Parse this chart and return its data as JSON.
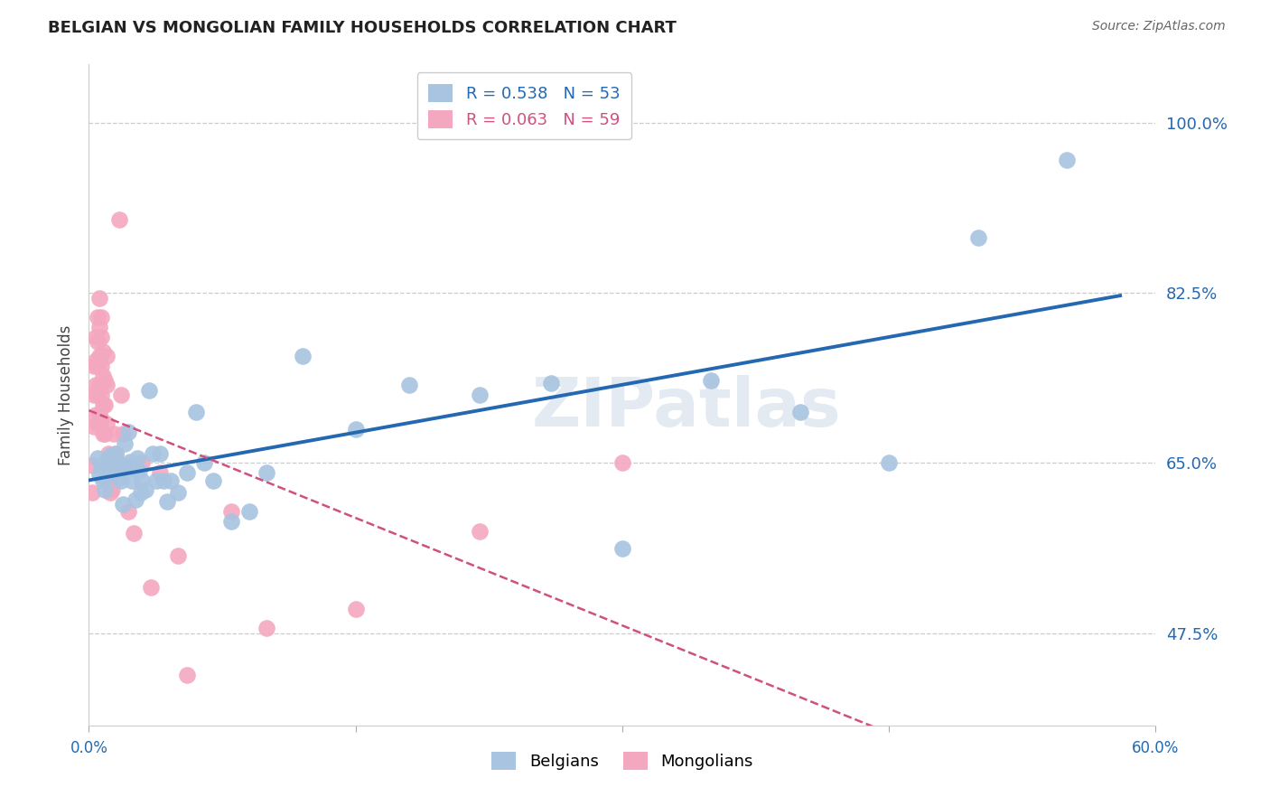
{
  "title": "BELGIAN VS MONGOLIAN FAMILY HOUSEHOLDS CORRELATION CHART",
  "source": "Source: ZipAtlas.com",
  "ylabel": "Family Households",
  "ytick_labels": [
    "47.5%",
    "65.0%",
    "82.5%",
    "100.0%"
  ],
  "ytick_values": [
    0.475,
    0.65,
    0.825,
    1.0
  ],
  "xlim": [
    0.0,
    0.6
  ],
  "ylim": [
    0.38,
    1.06
  ],
  "belgian_R": 0.538,
  "belgian_N": 53,
  "mongolian_R": 0.063,
  "mongolian_N": 59,
  "belgian_color": "#a8c4e0",
  "belgian_line_color": "#2368b0",
  "mongolian_color": "#f4a8c0",
  "mongolian_line_color": "#d05080",
  "background_color": "#ffffff",
  "watermark_text": "ZIPatlas",
  "title_fontsize": 13,
  "source_fontsize": 10,
  "belgians_x": [
    0.005,
    0.006,
    0.007,
    0.008,
    0.009,
    0.01,
    0.011,
    0.012,
    0.013,
    0.014,
    0.015,
    0.016,
    0.017,
    0.018,
    0.019,
    0.02,
    0.021,
    0.022,
    0.023,
    0.024,
    0.025,
    0.026,
    0.027,
    0.028,
    0.029,
    0.03,
    0.032,
    0.034,
    0.036,
    0.038,
    0.04,
    0.042,
    0.044,
    0.046,
    0.05,
    0.055,
    0.06,
    0.065,
    0.07,
    0.08,
    0.09,
    0.1,
    0.12,
    0.15,
    0.18,
    0.22,
    0.26,
    0.3,
    0.35,
    0.4,
    0.45,
    0.5,
    0.55
  ],
  "belgians_y": [
    0.655,
    0.638,
    0.648,
    0.632,
    0.622,
    0.651,
    0.645,
    0.658,
    0.642,
    0.655,
    0.66,
    0.65,
    0.635,
    0.632,
    0.608,
    0.67,
    0.648,
    0.682,
    0.651,
    0.632,
    0.645,
    0.612,
    0.655,
    0.642,
    0.62,
    0.632,
    0.622,
    0.725,
    0.66,
    0.632,
    0.66,
    0.632,
    0.61,
    0.632,
    0.62,
    0.64,
    0.702,
    0.65,
    0.632,
    0.59,
    0.6,
    0.64,
    0.76,
    0.685,
    0.73,
    0.72,
    0.732,
    0.562,
    0.735,
    0.702,
    0.65,
    0.882,
    0.962
  ],
  "mongolians_x": [
    0.002,
    0.002,
    0.003,
    0.003,
    0.003,
    0.004,
    0.004,
    0.004,
    0.004,
    0.005,
    0.005,
    0.005,
    0.005,
    0.005,
    0.006,
    0.006,
    0.006,
    0.006,
    0.006,
    0.007,
    0.007,
    0.007,
    0.007,
    0.007,
    0.008,
    0.008,
    0.008,
    0.008,
    0.009,
    0.009,
    0.009,
    0.01,
    0.01,
    0.01,
    0.011,
    0.011,
    0.012,
    0.012,
    0.013,
    0.013,
    0.014,
    0.015,
    0.016,
    0.017,
    0.018,
    0.019,
    0.02,
    0.022,
    0.025,
    0.03,
    0.035,
    0.04,
    0.05,
    0.055,
    0.08,
    0.1,
    0.15,
    0.22,
    0.3
  ],
  "mongolians_y": [
    0.648,
    0.62,
    0.75,
    0.72,
    0.688,
    0.78,
    0.755,
    0.73,
    0.7,
    0.8,
    0.775,
    0.75,
    0.72,
    0.69,
    0.82,
    0.79,
    0.76,
    0.73,
    0.7,
    0.8,
    0.78,
    0.75,
    0.72,
    0.695,
    0.765,
    0.74,
    0.71,
    0.68,
    0.735,
    0.71,
    0.68,
    0.76,
    0.73,
    0.69,
    0.66,
    0.63,
    0.652,
    0.62,
    0.655,
    0.622,
    0.68,
    0.66,
    0.648,
    0.9,
    0.72,
    0.68,
    0.648,
    0.6,
    0.578,
    0.65,
    0.522,
    0.64,
    0.555,
    0.432,
    0.6,
    0.48,
    0.5,
    0.58,
    0.65
  ]
}
